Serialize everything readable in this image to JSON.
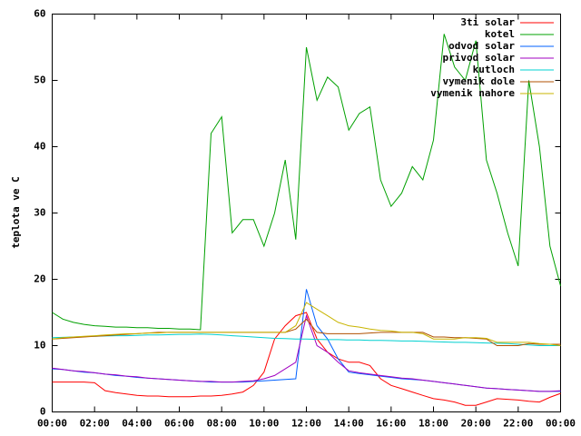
{
  "chart_data": {
    "type": "line",
    "ylabel": "teplota ve C",
    "x": [
      0,
      0.5,
      1,
      1.5,
      2,
      2.5,
      3,
      3.5,
      4,
      4.5,
      5,
      5.5,
      6,
      6.5,
      7,
      7.5,
      8,
      8.5,
      9,
      9.5,
      10,
      10.5,
      11,
      11.5,
      12,
      12.5,
      13,
      13.5,
      14,
      14.5,
      15,
      15.5,
      16,
      16.5,
      17,
      17.5,
      18,
      18.5,
      19,
      19.5,
      20,
      20.5,
      21,
      21.5,
      22,
      22.5,
      23,
      23.5,
      24
    ],
    "xlim": [
      0,
      24
    ],
    "xticks": [
      {
        "value": 0,
        "label": "00:00"
      },
      {
        "value": 2,
        "label": "02:00"
      },
      {
        "value": 4,
        "label": "04:00"
      },
      {
        "value": 6,
        "label": "06:00"
      },
      {
        "value": 8,
        "label": "08:00"
      },
      {
        "value": 10,
        "label": "10:00"
      },
      {
        "value": 12,
        "label": "12:00"
      },
      {
        "value": 14,
        "label": "14:00"
      },
      {
        "value": 16,
        "label": "16:00"
      },
      {
        "value": 18,
        "label": "18:00"
      },
      {
        "value": 20,
        "label": "20:00"
      },
      {
        "value": 22,
        "label": "22:00"
      },
      {
        "value": 24,
        "label": "00:00"
      }
    ],
    "ylim": [
      0,
      60
    ],
    "yticks": [
      0,
      10,
      20,
      30,
      40,
      50,
      60
    ],
    "legend": "top-right",
    "series": [
      {
        "name": "3ti solar",
        "color": "#ff0000",
        "values": [
          4.5,
          4.5,
          4.5,
          4.5,
          4.4,
          3.2,
          2.9,
          2.7,
          2.5,
          2.4,
          2.4,
          2.3,
          2.3,
          2.3,
          2.4,
          2.4,
          2.5,
          2.7,
          3,
          4,
          6,
          11,
          13,
          14.5,
          15,
          11,
          9,
          8,
          7.5,
          7.5,
          7,
          5,
          4,
          3.5,
          3,
          2.5,
          2,
          1.8,
          1.5,
          1,
          1,
          1.5,
          2,
          1.9,
          1.8,
          1.6,
          1.5,
          2.2,
          2.8
        ]
      },
      {
        "name": "kotel",
        "color": "#00a000",
        "values": [
          15,
          14,
          13.5,
          13.2,
          13,
          12.9,
          12.8,
          12.8,
          12.7,
          12.7,
          12.6,
          12.6,
          12.5,
          12.5,
          12.4,
          42,
          44.5,
          27,
          29,
          29,
          25,
          30,
          38,
          26,
          55,
          47,
          50.5,
          49,
          42.5,
          45,
          46,
          35,
          31,
          33,
          37,
          35,
          41,
          57,
          52,
          50,
          56,
          38,
          33,
          27,
          22,
          50,
          40,
          25,
          19
        ]
      },
      {
        "name": "odvod solar",
        "color": "#0060ff",
        "values": [
          6.5,
          6.4,
          6.2,
          6,
          5.9,
          5.7,
          5.5,
          5.4,
          5.2,
          5.1,
          5,
          4.9,
          4.8,
          4.7,
          4.6,
          4.5,
          4.5,
          4.5,
          4.5,
          4.6,
          4.7,
          4.8,
          4.9,
          5,
          18.5,
          13,
          11,
          8,
          6,
          5.8,
          5.6,
          5.4,
          5.2,
          5,
          4.9,
          4.8,
          4.6,
          4.4,
          4.2,
          4,
          3.8,
          3.6,
          3.5,
          3.4,
          3.3,
          3.2,
          3.1,
          3.1,
          3.1
        ]
      },
      {
        "name": "privod solar",
        "color": "#a000c0",
        "values": [
          6.6,
          6.4,
          6.2,
          6.1,
          5.9,
          5.7,
          5.6,
          5.4,
          5.3,
          5.1,
          5,
          4.9,
          4.8,
          4.7,
          4.6,
          4.6,
          4.5,
          4.5,
          4.6,
          4.7,
          5,
          5.5,
          6.5,
          7.5,
          14.5,
          10,
          9,
          7.5,
          6.2,
          5.9,
          5.7,
          5.5,
          5.3,
          5.1,
          5,
          4.8,
          4.6,
          4.4,
          4.2,
          4,
          3.8,
          3.6,
          3.5,
          3.4,
          3.3,
          3.2,
          3.1,
          3.1,
          3.2
        ]
      },
      {
        "name": "kutloch",
        "color": "#00d0d0",
        "values": [
          11.2,
          11.25,
          11.3,
          11.35,
          11.4,
          11.45,
          11.5,
          11.5,
          11.55,
          11.6,
          11.6,
          11.65,
          11.7,
          11.7,
          11.75,
          11.7,
          11.6,
          11.5,
          11.4,
          11.3,
          11.2,
          11.1,
          11.05,
          11,
          11,
          10.95,
          10.9,
          10.9,
          10.85,
          10.85,
          10.8,
          10.8,
          10.75,
          10.7,
          10.7,
          10.65,
          10.6,
          10.55,
          10.5,
          10.5,
          10.45,
          10.4,
          10.35,
          10.3,
          10.2,
          10.1,
          10,
          10,
          10
        ]
      },
      {
        "name": "vymenik dole",
        "color": "#b05000",
        "values": [
          11,
          11.1,
          11.2,
          11.3,
          11.4,
          11.5,
          11.6,
          11.7,
          11.8,
          11.9,
          12,
          12,
          12,
          12,
          12,
          12,
          12,
          12,
          12,
          12,
          12,
          12,
          12,
          12.5,
          14,
          12,
          11.8,
          11.8,
          11.8,
          11.8,
          11.9,
          12,
          12,
          12,
          12,
          12,
          11.3,
          11.3,
          11.2,
          11.2,
          11.1,
          11,
          10,
          10,
          10,
          10.3,
          10.2,
          10.2,
          10.2
        ]
      },
      {
        "name": "vymenik nahore",
        "color": "#c8b400",
        "values": [
          11,
          11.2,
          11.3,
          11.4,
          11.5,
          11.6,
          11.7,
          11.8,
          11.8,
          11.9,
          11.9,
          12,
          12,
          12,
          12,
          12,
          12,
          12,
          12,
          12,
          12,
          12,
          12,
          13,
          16.5,
          15.5,
          14.5,
          13.5,
          13,
          12.8,
          12.5,
          12.3,
          12.2,
          12,
          12,
          11.8,
          11,
          11,
          11,
          11.2,
          11.2,
          11.1,
          10.5,
          10.5,
          10.5,
          10.5,
          10.3,
          10.2,
          10
        ]
      }
    ]
  }
}
